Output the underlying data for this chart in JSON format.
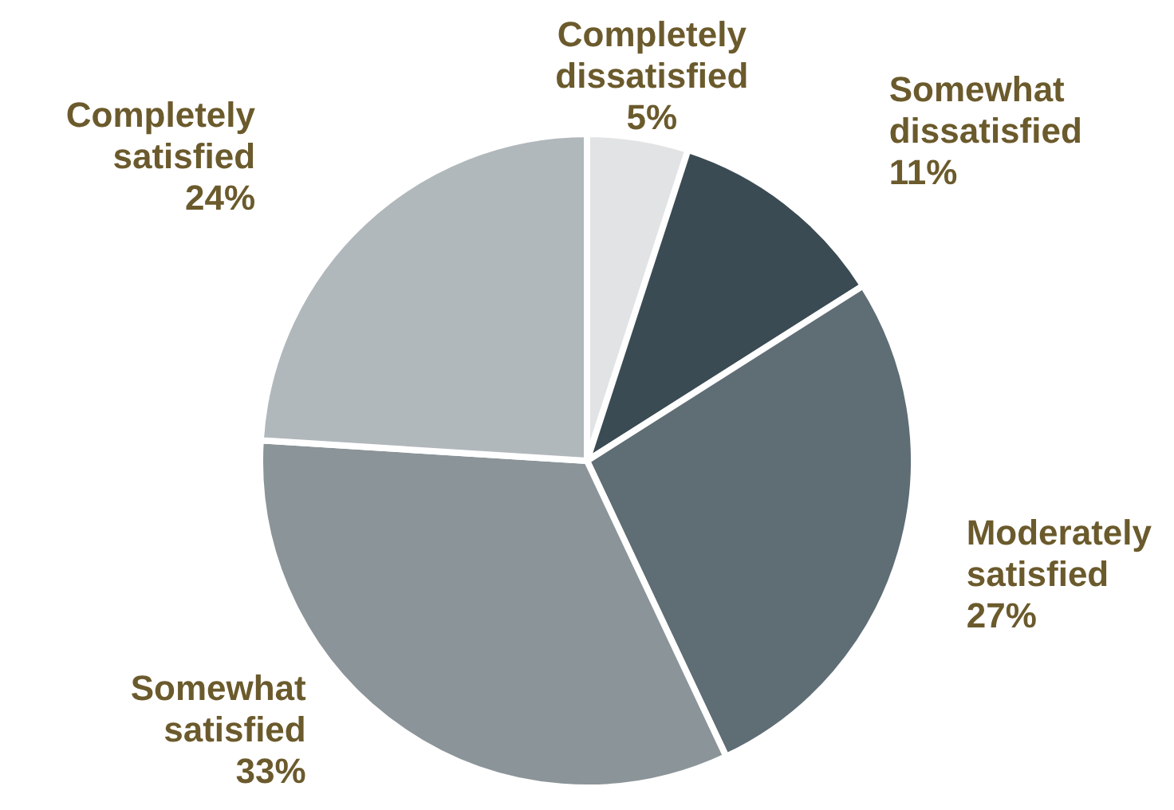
{
  "chart_data": {
    "type": "pie",
    "categories": [
      "Completely dissatisfied",
      "Somewhat dissatisfied",
      "Moderately satisfied",
      "Somewhat satisfied",
      "Completely satisfied"
    ],
    "values": [
      5,
      11,
      27,
      33,
      24
    ],
    "value_labels": [
      "5%",
      "11%",
      "27%",
      "33%",
      "24%"
    ],
    "colors": [
      "#e1e3e5",
      "#3b4b53",
      "#5f6d75",
      "#8b9499",
      "#b1b8bc"
    ],
    "legend": false
  }
}
